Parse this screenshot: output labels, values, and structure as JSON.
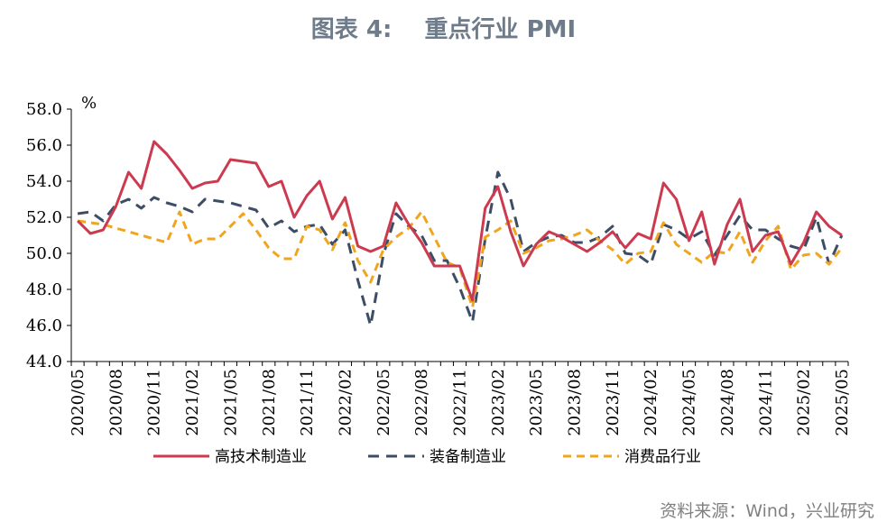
{
  "title": "图表 4:    重点行业 PMI",
  "source": "资料来源：Wind，兴业研究",
  "chart_data": {
    "type": "line",
    "title": "图表 4:    重点行业 PMI",
    "unit": "%",
    "ylim": [
      44,
      58
    ],
    "yticks": [
      "44.0",
      "46.0",
      "48.0",
      "50.0",
      "52.0",
      "54.0",
      "56.0",
      "58.0"
    ],
    "xtick_labels": [
      "2020/05",
      "2020/08",
      "2020/11",
      "2021/02",
      "2021/05",
      "2021/08",
      "2021/11",
      "2022/02",
      "2022/05",
      "2022/08",
      "2022/11",
      "2023/02",
      "2023/05",
      "2023/08",
      "2023/11",
      "2024/02",
      "2024/05",
      "2024/08",
      "2024/11",
      "2025/02",
      "2025/05"
    ],
    "legend_position": "bottom",
    "x": [
      "2020/05",
      "2020/06",
      "2020/07",
      "2020/08",
      "2020/09",
      "2020/10",
      "2020/11",
      "2020/12",
      "2021/01",
      "2021/02",
      "2021/03",
      "2021/04",
      "2021/05",
      "2021/06",
      "2021/07",
      "2021/08",
      "2021/09",
      "2021/10",
      "2021/11",
      "2021/12",
      "2022/01",
      "2022/02",
      "2022/03",
      "2022/04",
      "2022/05",
      "2022/06",
      "2022/07",
      "2022/08",
      "2022/09",
      "2022/10",
      "2022/11",
      "2022/12",
      "2023/01",
      "2023/02",
      "2023/03",
      "2023/04",
      "2023/05",
      "2023/06",
      "2023/07",
      "2023/08",
      "2023/09",
      "2023/10",
      "2023/11",
      "2023/12",
      "2024/01",
      "2024/02",
      "2024/03",
      "2024/04",
      "2024/05",
      "2024/06",
      "2024/07",
      "2024/08",
      "2024/09",
      "2024/10",
      "2024/11",
      "2024/12",
      "2025/01",
      "2025/02",
      "2025/03",
      "2025/04",
      "2025/05"
    ],
    "series": [
      {
        "name": "高技术制造业",
        "color": "#cc3a4f",
        "dash": "solid",
        "values": [
          51.8,
          51.1,
          51.3,
          52.6,
          54.5,
          53.6,
          56.2,
          55.5,
          54.6,
          53.6,
          53.9,
          54.0,
          55.2,
          55.1,
          55.0,
          53.7,
          54.0,
          52.0,
          53.2,
          54.0,
          51.9,
          53.1,
          50.4,
          50.1,
          50.4,
          52.8,
          51.6,
          50.6,
          49.3,
          49.3,
          49.3,
          47.4,
          52.5,
          53.7,
          51.2,
          49.3,
          50.5,
          51.2,
          50.9,
          50.5,
          50.1,
          50.6,
          51.2,
          50.3,
          51.1,
          50.8,
          53.9,
          53.0,
          50.7,
          52.3,
          49.4,
          51.6,
          53.0,
          50.1,
          51.0,
          51.2,
          49.4,
          50.6,
          52.3,
          51.5,
          51.0
        ]
      },
      {
        "name": "装备制造业",
        "color": "#3d4d66",
        "dash": "12,8",
        "values": [
          52.2,
          52.3,
          51.8,
          52.7,
          53.0,
          52.5,
          53.1,
          52.8,
          52.6,
          52.3,
          53.0,
          52.9,
          52.8,
          52.6,
          52.4,
          51.4,
          51.8,
          51.2,
          51.5,
          51.6,
          50.5,
          51.3,
          48.5,
          46.0,
          49.9,
          52.2,
          51.5,
          51.0,
          49.6,
          49.6,
          48.1,
          46.2,
          50.8,
          54.5,
          53.0,
          50.1,
          50.6,
          50.9,
          51.0,
          50.6,
          50.6,
          50.9,
          51.5,
          50.0,
          49.9,
          49.4,
          51.6,
          51.3,
          50.8,
          51.2,
          49.9,
          51.0,
          52.1,
          51.3,
          51.3,
          50.8,
          50.4,
          50.2,
          52.0,
          49.4,
          51.0
        ]
      },
      {
        "name": "消费品行业",
        "color": "#f0a51e",
        "dash": "9,6",
        "values": [
          51.8,
          51.7,
          51.6,
          51.4,
          51.2,
          51.0,
          50.8,
          50.6,
          52.3,
          50.5,
          50.8,
          50.8,
          51.5,
          52.2,
          51.3,
          50.3,
          49.7,
          49.7,
          51.5,
          51.3,
          50.2,
          51.7,
          49.6,
          48.4,
          50.2,
          50.9,
          51.4,
          52.3,
          50.9,
          49.5,
          49.2,
          47.0,
          50.9,
          51.3,
          51.8,
          50.0,
          50.3,
          50.7,
          50.8,
          51.0,
          51.3,
          50.7,
          50.2,
          49.4,
          50.0,
          50.1,
          51.7,
          50.5,
          50.0,
          49.5,
          50.1,
          50.0,
          51.2,
          49.5,
          50.7,
          51.5,
          49.1,
          49.9,
          50.0,
          49.4,
          50.3
        ]
      }
    ]
  }
}
